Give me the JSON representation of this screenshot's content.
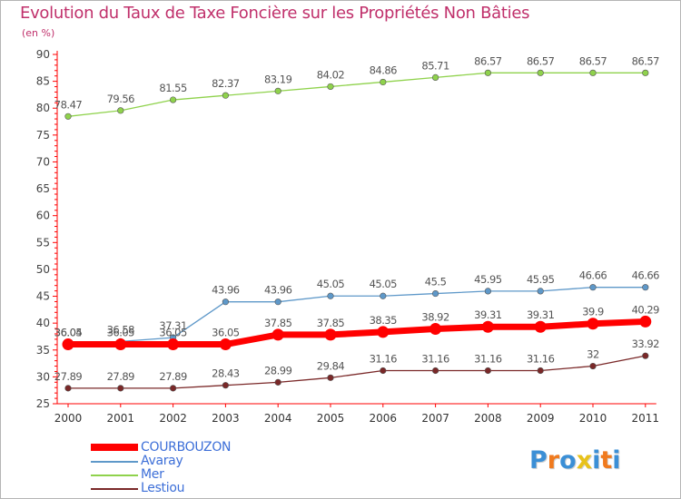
{
  "header": {
    "title": "Evolution du Taux de Taxe Foncière sur les Propriétés Non Bâties",
    "unit": "(en %)"
  },
  "chart_data": {
    "type": "line",
    "title": "Evolution du Taux de Taxe Foncière sur les Propriétés Non Bâties",
    "ylabel": "(en %)",
    "xlabel": "",
    "categories": [
      "2000",
      "2001",
      "2002",
      "2003",
      "2004",
      "2005",
      "2006",
      "2007",
      "2008",
      "2009",
      "2010",
      "2011"
    ],
    "ylim": [
      25,
      90
    ],
    "yticks": [
      25,
      30,
      35,
      40,
      45,
      50,
      55,
      60,
      65,
      70,
      75,
      80,
      85,
      90
    ],
    "grid": false,
    "legend_position": "bottom-left",
    "series": [
      {
        "name": "COURBOUZON",
        "color": "#ff0000",
        "style": "thick",
        "values": [
          36.05,
          36.05,
          36.05,
          36.05,
          37.85,
          37.85,
          38.35,
          38.92,
          39.31,
          39.31,
          39.9,
          40.29
        ],
        "labels": [
          "36.05",
          "36.05",
          "36.05",
          "36.05",
          "37.85",
          "37.85",
          "38.35",
          "38.92",
          "39.31",
          "39.31",
          "39.9",
          "40.29"
        ]
      },
      {
        "name": "Avaray",
        "color": "#5e98c9",
        "style": "thin",
        "values": [
          36.04,
          36.58,
          37.31,
          43.96,
          43.96,
          45.05,
          45.05,
          45.5,
          45.95,
          45.95,
          46.66,
          46.66
        ],
        "labels": [
          "36.04",
          "36.58",
          "37.31",
          "43.96",
          "43.96",
          "45.05",
          "45.05",
          "45.5",
          "45.95",
          "45.95",
          "46.66",
          "46.66"
        ]
      },
      {
        "name": "Mer",
        "color": "#8fd24c",
        "style": "thin",
        "values": [
          78.47,
          79.56,
          81.55,
          82.37,
          83.19,
          84.02,
          84.86,
          85.71,
          86.57,
          86.57,
          86.57,
          86.57
        ],
        "labels": [
          "78.47",
          "79.56",
          "81.55",
          "82.37",
          "83.19",
          "84.02",
          "84.86",
          "85.71",
          "86.57",
          "86.57",
          "86.57",
          "86.57"
        ]
      },
      {
        "name": "Lestiou",
        "color": "#7a2828",
        "style": "thin",
        "values": [
          27.89,
          27.89,
          27.89,
          28.43,
          28.99,
          29.84,
          31.16,
          31.16,
          31.16,
          31.16,
          32,
          33.92
        ],
        "labels": [
          "27.89",
          "27.89",
          "27.89",
          "28.43",
          "28.99",
          "29.84",
          "31.16",
          "31.16",
          "31.16",
          "31.16",
          "32",
          "33.92"
        ]
      }
    ]
  },
  "logo": {
    "letters": [
      "P",
      "r",
      "o",
      "x",
      "i",
      "t",
      "i"
    ],
    "colors": [
      "#3b8fd6",
      "#f07a1e",
      "#3b8fd6",
      "#e8c21a",
      "#3b8fd6",
      "#f07a1e",
      "#3b8fd6"
    ]
  }
}
